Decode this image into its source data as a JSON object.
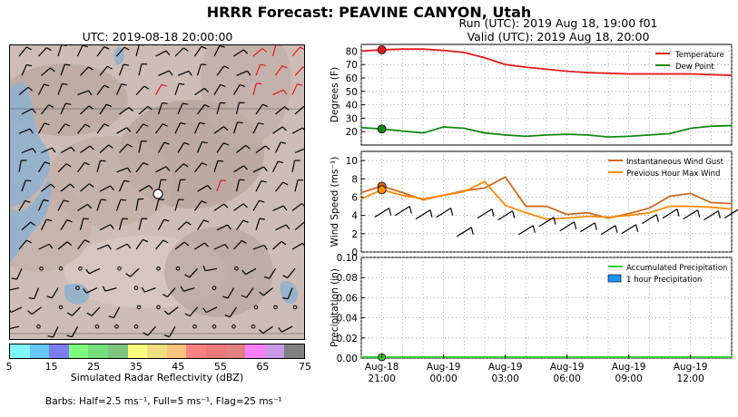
{
  "title": "HRRR Forecast: PEAVINE CANYON, Utah",
  "map": {
    "title": "UTC: 2019-08-18 20:00:00",
    "colorbar": {
      "label": "Simulated Radar Reflectivity (dBZ)",
      "ticks": [
        "5",
        "15",
        "25",
        "35",
        "45",
        "55",
        "65",
        "75"
      ],
      "colors": [
        "#7ff7ff",
        "#63c8f7",
        "#7d7df2",
        "#7dff7d",
        "#73e07d",
        "#7dc481",
        "#fbff7d",
        "#f0e07d",
        "#f9c47d",
        "#ff8080",
        "#ea7979",
        "#e08080",
        "#ff7dff",
        "#c89ae6",
        "#808080"
      ]
    },
    "barb_note": "Barbs: Half=2.5 ms⁻¹, Full=5 ms⁻¹, Flag=25 ms⁻¹"
  },
  "run": {
    "line1": "Run (UTC): 2019 Aug 18, 19:00 f01",
    "line2": "Valid (UTC): 2019 Aug 18, 20:00"
  },
  "chart_data": [
    {
      "type": "line",
      "ylabel": "Degrees (F)",
      "ylim": [
        10,
        85
      ],
      "yticks": [
        20,
        30,
        40,
        50,
        60,
        70,
        80
      ],
      "x_hours": [
        0,
        1,
        2,
        3,
        4,
        5,
        6,
        7,
        8,
        9,
        10,
        11,
        12,
        13,
        14,
        15,
        16,
        17,
        18
      ],
      "series": [
        {
          "name": "Temperature",
          "color": "#e41a1c",
          "values": [
            80,
            81,
            81.5,
            81.5,
            80.5,
            79,
            75,
            70,
            68,
            66.5,
            65,
            64,
            63.5,
            63,
            63,
            63,
            63,
            62.5,
            62
          ]
        },
        {
          "name": "Dew Point",
          "color": "#118811",
          "values": [
            23,
            22,
            20.5,
            19,
            23.5,
            22.5,
            19,
            17.5,
            16.5,
            17.5,
            18,
            17.5,
            16,
            16.5,
            17.5,
            18.5,
            22.5,
            24,
            24.5
          ]
        }
      ],
      "legend": "top-right",
      "grid": true
    },
    {
      "type": "line",
      "ylabel": "Wind Speed (ms⁻¹)",
      "ylim": [
        0,
        11
      ],
      "yticks": [
        0,
        2,
        4,
        6,
        8,
        10
      ],
      "x_hours": [
        0,
        1,
        2,
        3,
        4,
        5,
        6,
        7,
        8,
        9,
        10,
        11,
        12,
        13,
        14,
        15,
        16,
        17,
        18
      ],
      "series": [
        {
          "name": "Instantaneous Wind Gust",
          "color": "#d2691e",
          "values": [
            6.5,
            7.2,
            6.5,
            5.7,
            6.2,
            6.7,
            7,
            8.2,
            5,
            5,
            4.1,
            4.3,
            3.7,
            4.2,
            4.8,
            6.1,
            6.4,
            5.4,
            5.3
          ]
        },
        {
          "name": "Previous Hour Max Wind",
          "color": "#ff8c00",
          "values": [
            5.8,
            6.8,
            6.2,
            5.8,
            6.2,
            6.6,
            7.7,
            5.1,
            4.3,
            3.6,
            3.7,
            3.9,
            3.8,
            4,
            4.3,
            5,
            5,
            4.9,
            4.7
          ]
        }
      ],
      "legend": "top-right",
      "grid": true
    },
    {
      "type": "bar",
      "ylabel": "Precipitation (in)",
      "ylim": [
        0,
        0.1
      ],
      "yticks": [
        "0.00",
        "0.02",
        "0.04",
        "0.06",
        "0.08",
        "0.10"
      ],
      "series": [
        {
          "name": "Accumulated Precipitation",
          "color": "#33cc33",
          "values": [
            0,
            0,
            0,
            0,
            0,
            0,
            0,
            0,
            0,
            0,
            0,
            0,
            0,
            0,
            0,
            0,
            0,
            0,
            0
          ]
        },
        {
          "name": "1 hour Precipitation",
          "color": "#1e90ff",
          "values": [
            0,
            0,
            0,
            0,
            0,
            0,
            0,
            0,
            0,
            0,
            0,
            0,
            0,
            0,
            0,
            0,
            0,
            0,
            0
          ]
        }
      ],
      "xticks": [
        {
          "hour": 1,
          "l1": "Aug-18",
          "l2": "21:00"
        },
        {
          "hour": 4,
          "l1": "Aug-19",
          "l2": "00:00"
        },
        {
          "hour": 7,
          "l1": "Aug-19",
          "l2": "03:00"
        },
        {
          "hour": 10,
          "l1": "Aug-19",
          "l2": "06:00"
        },
        {
          "hour": 13,
          "l1": "Aug-19",
          "l2": "09:00"
        },
        {
          "hour": 16,
          "l1": "Aug-19",
          "l2": "12:00"
        }
      ],
      "legend": "top-right",
      "grid": true
    }
  ]
}
